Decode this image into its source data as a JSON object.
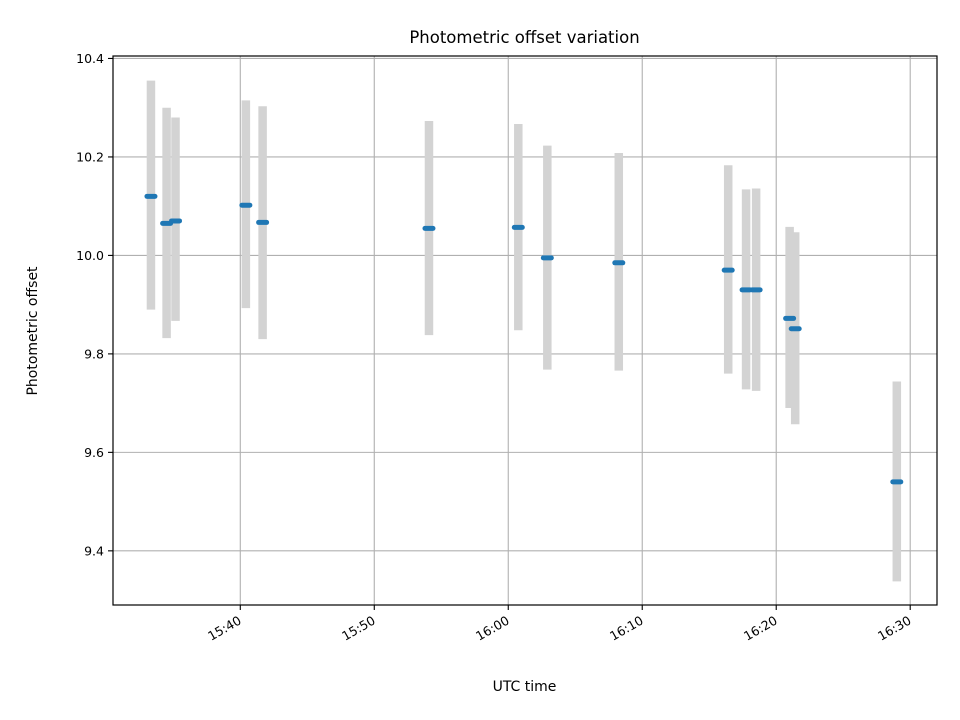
{
  "chart_data": {
    "type": "scatter",
    "title": "Photometric offset variation",
    "xlabel": "UTC time",
    "ylabel": "Photometric offset",
    "x_axis_type": "time",
    "xlim": [
      "15:30:30",
      "16:32:00"
    ],
    "ylim": [
      9.29,
      10.405
    ],
    "grid": true,
    "x_ticks": [
      "15:40",
      "15:50",
      "16:00",
      "16:10",
      "16:20",
      "16:30"
    ],
    "y_ticks": [
      "9.4",
      "9.6",
      "9.8",
      "10.0",
      "10.2",
      "10.4"
    ],
    "series": [
      {
        "marker_color": "#1f77b4",
        "errorbar_color": "#d3d3d3",
        "points": [
          {
            "x": "15:33:20",
            "y": 10.12,
            "ylow": 9.89,
            "yhigh": 10.355
          },
          {
            "x": "15:34:30",
            "y": 10.065,
            "ylow": 9.832,
            "yhigh": 10.3
          },
          {
            "x": "15:35:10",
            "y": 10.07,
            "ylow": 9.867,
            "yhigh": 10.28
          },
          {
            "x": "15:40:25",
            "y": 10.102,
            "ylow": 9.893,
            "yhigh": 10.315
          },
          {
            "x": "15:41:40",
            "y": 10.067,
            "ylow": 9.83,
            "yhigh": 10.303
          },
          {
            "x": "15:54:05",
            "y": 10.055,
            "ylow": 9.838,
            "yhigh": 10.273
          },
          {
            "x": "16:00:45",
            "y": 10.057,
            "ylow": 9.848,
            "yhigh": 10.267
          },
          {
            "x": "16:02:55",
            "y": 9.995,
            "ylow": 9.768,
            "yhigh": 10.223
          },
          {
            "x": "16:08:15",
            "y": 9.985,
            "ylow": 9.766,
            "yhigh": 10.208
          },
          {
            "x": "16:16:25",
            "y": 9.97,
            "ylow": 9.76,
            "yhigh": 10.183
          },
          {
            "x": "16:17:45",
            "y": 9.93,
            "ylow": 9.728,
            "yhigh": 10.134
          },
          {
            "x": "16:18:30",
            "y": 9.93,
            "ylow": 9.725,
            "yhigh": 10.136
          },
          {
            "x": "16:21:00",
            "y": 9.872,
            "ylow": 9.69,
            "yhigh": 10.058
          },
          {
            "x": "16:21:25",
            "y": 9.851,
            "ylow": 9.657,
            "yhigh": 10.047
          },
          {
            "x": "16:29:00",
            "y": 9.54,
            "ylow": 9.338,
            "yhigh": 9.744
          }
        ]
      }
    ]
  }
}
